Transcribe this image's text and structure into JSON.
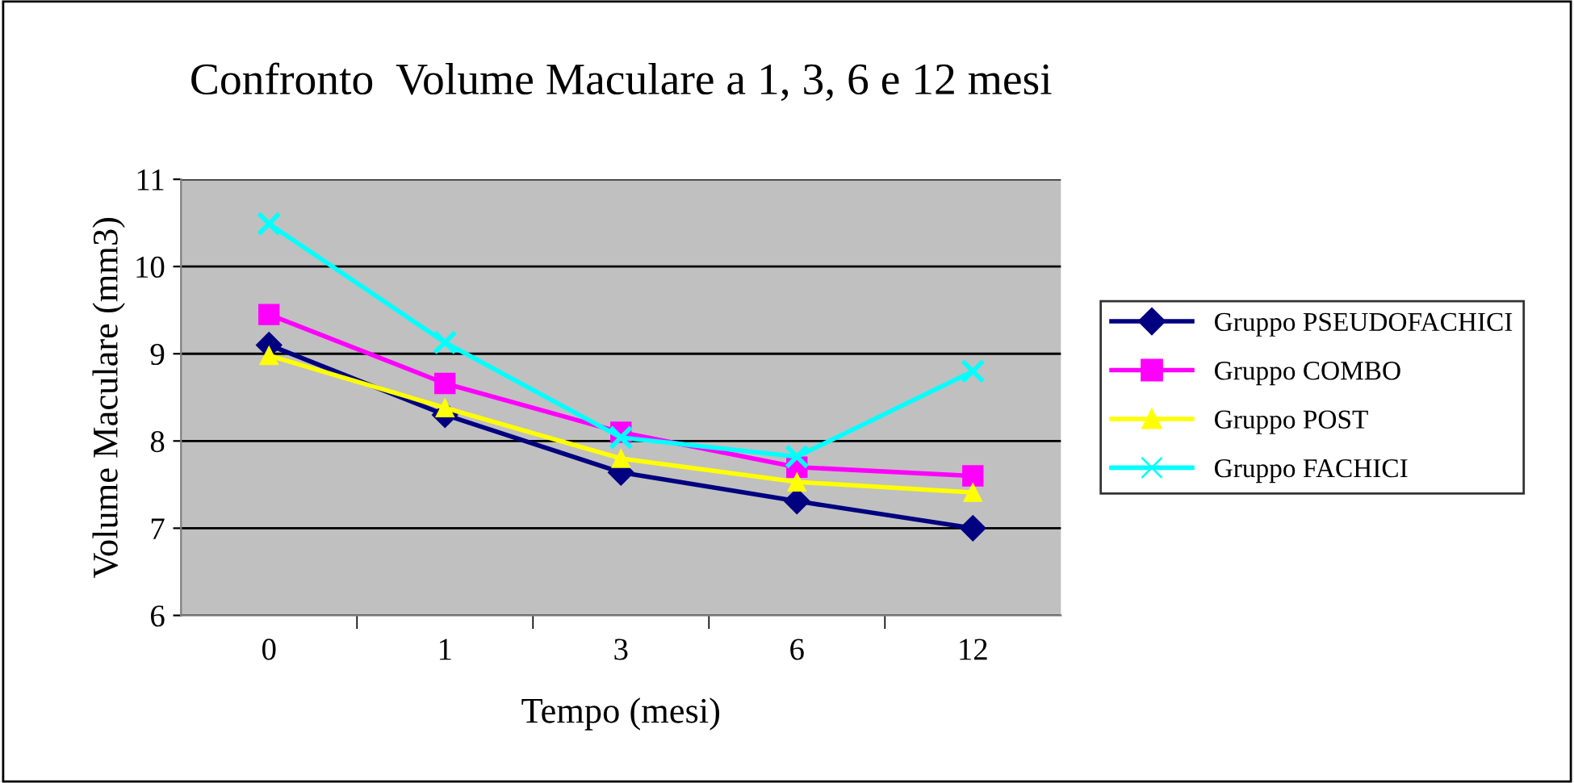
{
  "chart_data": {
    "type": "line",
    "title": "Confronto  Volume Maculare a 1, 3, 6 e 12 mesi",
    "xlabel": "Tempo (mesi)",
    "ylabel": "Volume Maculare (mm3)",
    "categories": [
      "0",
      "1",
      "3",
      "6",
      "12"
    ],
    "series": [
      {
        "name": "Gruppo PSEUDOFACHICI",
        "color": "#000080",
        "marker": "diamond",
        "values": [
          9.1,
          8.3,
          7.64,
          7.31,
          7.0
        ]
      },
      {
        "name": "Gruppo COMBO",
        "color": "#ff00ff",
        "marker": "square",
        "values": [
          9.45,
          8.66,
          8.1,
          7.7,
          7.6
        ]
      },
      {
        "name": "Gruppo POST",
        "color": "#ffff00",
        "marker": "triangle",
        "values": [
          8.98,
          8.38,
          7.8,
          7.53,
          7.41
        ]
      },
      {
        "name": "Gruppo FACHICI",
        "color": "#00ffff",
        "marker": "cross",
        "values": [
          10.49,
          9.13,
          8.04,
          7.82,
          8.8
        ]
      }
    ],
    "ylim": [
      6,
      11
    ],
    "yticks": [
      6,
      7,
      8,
      9,
      10,
      11
    ],
    "grid": "y",
    "legend": "right",
    "line_style": "solid"
  }
}
